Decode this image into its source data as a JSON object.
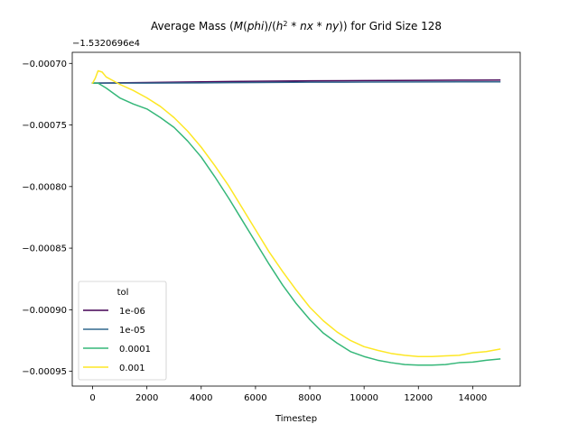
{
  "chart_data": {
    "type": "line",
    "title_parts": [
      {
        "text": "Average Mass (",
        "italic": false
      },
      {
        "text": "M",
        "italic": true
      },
      {
        "text": "(",
        "italic": false
      },
      {
        "text": "phi",
        "italic": true
      },
      {
        "text": ")/(",
        "italic": false
      },
      {
        "text": "h",
        "italic": true
      },
      {
        "text": "2",
        "italic": false,
        "sup": true
      },
      {
        "text": " * ",
        "italic": false
      },
      {
        "text": "nx",
        "italic": true
      },
      {
        "text": " * ",
        "italic": false
      },
      {
        "text": "ny",
        "italic": true
      },
      {
        "text": ")) for Grid Size 128",
        "italic": false
      }
    ],
    "title": "Average Mass (M(phi)/(h^2 * nx * ny)) for Grid Size 128",
    "xlabel": "Timestep",
    "ylabel": "",
    "y_offset_label": "−1.5320696e4",
    "xlim": [
      -750,
      15750
    ],
    "ylim": [
      -0.000962,
      -0.000691
    ],
    "xticks": [
      0,
      2000,
      4000,
      6000,
      8000,
      10000,
      12000,
      14000
    ],
    "xtick_labels": [
      "0",
      "2000",
      "4000",
      "6000",
      "8000",
      "10000",
      "12000",
      "14000"
    ],
    "yticks": [
      -0.0007,
      -0.00075,
      -0.0008,
      -0.00085,
      -0.0009,
      -0.00095
    ],
    "ytick_labels": [
      "−0.00070",
      "−0.00075",
      "−0.00080",
      "−0.00085",
      "−0.00090",
      "−0.00095"
    ],
    "grid": false,
    "legend": {
      "title": "tol",
      "placement": "lower left"
    },
    "series": [
      {
        "name": "1e-06",
        "color": "#440154",
        "x": [
          0,
          2000,
          4000,
          6000,
          8000,
          10000,
          12000,
          14000,
          15000
        ],
        "y": [
          -0.000716,
          -0.0007155,
          -0.000715,
          -0.0007145,
          -0.0007142,
          -0.000714,
          -0.0007138,
          -0.0007136,
          -0.0007135
        ]
      },
      {
        "name": "1e-05",
        "color": "#31688e",
        "x": [
          0,
          2000,
          4000,
          6000,
          8000,
          10000,
          12000,
          14000,
          15000
        ],
        "y": [
          -0.000716,
          -0.000716,
          -0.0007158,
          -0.0007155,
          -0.0007153,
          -0.0007152,
          -0.0007151,
          -0.000715,
          -0.000715
        ]
      },
      {
        "name": "0.0001",
        "color": "#35b779",
        "x": [
          0,
          200,
          500,
          1000,
          1500,
          2000,
          2500,
          3000,
          3500,
          4000,
          4500,
          5000,
          5500,
          6000,
          6500,
          7000,
          7500,
          8000,
          8500,
          9000,
          9500,
          10000,
          10500,
          11000,
          11500,
          12000,
          12500,
          13000,
          13500,
          14000,
          14500,
          15000
        ],
        "y": [
          -0.000716,
          -0.000716,
          -0.00072,
          -0.000728,
          -0.000733,
          -0.000737,
          -0.000744,
          -0.000752,
          -0.000763,
          -0.000776,
          -0.000792,
          -0.000809,
          -0.000827,
          -0.000845,
          -0.000863,
          -0.00088,
          -0.000895,
          -0.000908,
          -0.000919,
          -0.000927,
          -0.000934,
          -0.000938,
          -0.000941,
          -0.000943,
          -0.0009445,
          -0.000945,
          -0.000945,
          -0.0009445,
          -0.000943,
          -0.0009425,
          -0.000941,
          -0.00094
        ]
      },
      {
        "name": "0.001",
        "color": "#fde725",
        "x": [
          0,
          100,
          200,
          350,
          500,
          750,
          1000,
          1500,
          2000,
          2500,
          3000,
          3500,
          4000,
          4500,
          5000,
          5500,
          6000,
          6500,
          7000,
          7500,
          8000,
          8500,
          9000,
          9500,
          10000,
          10500,
          11000,
          11500,
          12000,
          12500,
          13000,
          13500,
          14000,
          14500,
          15000
        ],
        "y": [
          -0.000716,
          -0.000712,
          -0.000706,
          -0.000707,
          -0.000711,
          -0.000714,
          -0.000717,
          -0.000722,
          -0.000728,
          -0.000735,
          -0.000744,
          -0.000755,
          -0.000768,
          -0.000783,
          -0.000799,
          -0.000817,
          -0.000835,
          -0.000853,
          -0.000869,
          -0.000884,
          -0.000898,
          -0.000909,
          -0.000918,
          -0.000925,
          -0.00093,
          -0.000933,
          -0.0009355,
          -0.000937,
          -0.000938,
          -0.000938,
          -0.0009375,
          -0.000937,
          -0.000935,
          -0.000934,
          -0.000932
        ]
      }
    ]
  }
}
